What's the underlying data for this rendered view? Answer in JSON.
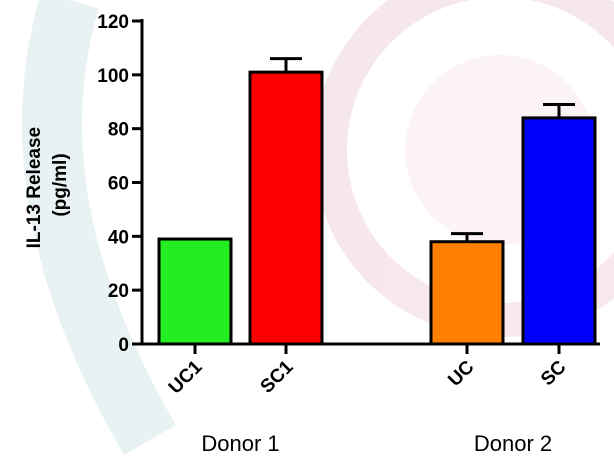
{
  "chart_data": {
    "type": "bar",
    "ylabel": "IL-13 Release\n(pg/ml)",
    "ylim": [
      0,
      120
    ],
    "yticks": [
      0,
      20,
      40,
      60,
      80,
      100,
      120
    ],
    "categories": [
      "UC1",
      "SC1",
      "UC",
      "SC"
    ],
    "values": [
      39,
      101,
      38,
      84
    ],
    "errors": [
      0,
      5,
      3,
      5
    ],
    "bar_colors": [
      "#22EE22",
      "#FF0000",
      "#FF8000",
      "#0000FF"
    ],
    "groups": [
      {
        "label": "Donor 1",
        "categories": [
          0,
          1
        ]
      },
      {
        "label": "Donor 2",
        "categories": [
          2,
          3
        ]
      }
    ],
    "grid": false,
    "legend": "none"
  }
}
